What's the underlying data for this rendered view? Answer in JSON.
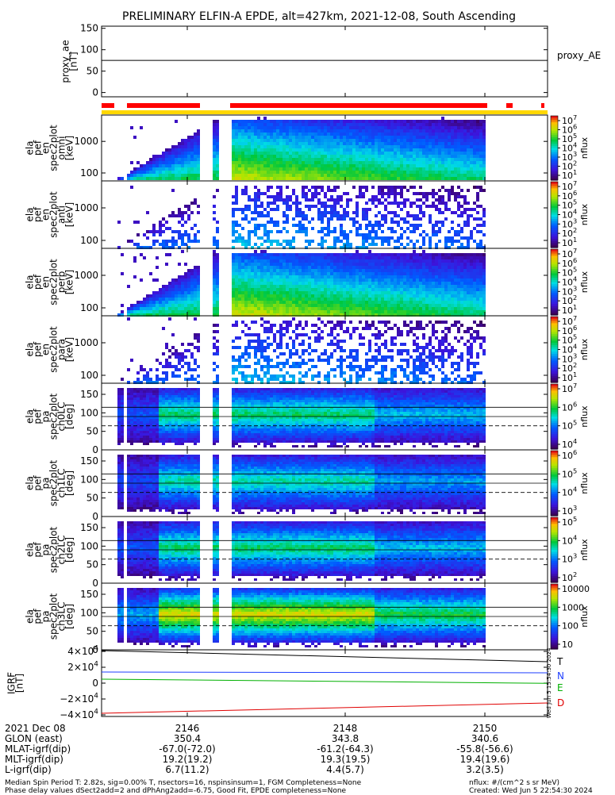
{
  "title": "PRELIMINARY ELFIN-A EPDE, alt=427km, 2021-12-08, South Ascending",
  "chart_data": [
    {
      "type": "line",
      "panel": "proxy_ae",
      "ylabel": "proxy_ae\n[nT]",
      "yticks": [
        "150",
        "100",
        "50",
        "0"
      ],
      "ylim": [
        -10,
        155
      ],
      "series": [
        {
          "name": "proxy_AE",
          "y_constant": 75
        }
      ],
      "legend": "proxy_AE"
    },
    {
      "type": "heatmap",
      "panel": "ela_pef_en_spec2plot_omni",
      "ylabel": "ela\npef\nen\nspec2plot\nomni\n[keV]",
      "yticks": [
        "1000",
        "100"
      ],
      "yscale": "log",
      "colorbar_label": "nflux",
      "colorbar_ticks": [
        "10^7",
        "10^6",
        "10^5",
        "10^4",
        "10^3",
        "10^2",
        "10^1"
      ]
    },
    {
      "type": "heatmap",
      "panel": "ela_pef_en_spec2plot_anti",
      "ylabel": "ela\npef\nen\nspec2plot\nanti\n[keV]",
      "yticks": [
        "1000",
        "100"
      ],
      "yscale": "log",
      "colorbar_label": "nflux",
      "colorbar_ticks": [
        "10^7",
        "10^6",
        "10^5",
        "10^4",
        "10^3",
        "10^2",
        "10^1"
      ]
    },
    {
      "type": "heatmap",
      "panel": "ela_pef_en_spec2plot_perp",
      "ylabel": "ela\npef\nen\nspec2plot\nperp\n[keV]",
      "yticks": [
        "1000",
        "100"
      ],
      "yscale": "log",
      "colorbar_label": "nflux",
      "colorbar_ticks": [
        "10^7",
        "10^6",
        "10^5",
        "10^4",
        "10^3",
        "10^2",
        "10^1"
      ]
    },
    {
      "type": "heatmap",
      "panel": "ela_pef_en_spec2plot_para",
      "ylabel": "ela\npef\nen\nspec2plot\npara\n[keV]",
      "yticks": [
        "1000",
        "100"
      ],
      "yscale": "log",
      "colorbar_label": "nflux",
      "colorbar_ticks": [
        "10^7",
        "10^6",
        "10^5",
        "10^4",
        "10^3",
        "10^2",
        "10^1"
      ]
    },
    {
      "type": "heatmap",
      "panel": "ela_pef_pa_spec2plot_ch0LC",
      "ylabel": "ela\npef\npa\nspec2plot\nch0LC\n[deg]",
      "yticks": [
        "150",
        "100",
        "50",
        "0"
      ],
      "ylim": [
        0,
        180
      ],
      "colorbar_label": "nflux",
      "colorbar_ticks": [
        "10^7",
        "10^6",
        "10^5",
        "10^4"
      ]
    },
    {
      "type": "heatmap",
      "panel": "ela_pef_pa_spec2plot_ch1LC",
      "ylabel": "ela\npef\npa\nspec2plot\nch1LC\n[deg]",
      "yticks": [
        "150",
        "100",
        "50",
        "0"
      ],
      "ylim": [
        0,
        180
      ],
      "colorbar_label": "nflux",
      "colorbar_ticks": [
        "10^6",
        "10^5",
        "10^4",
        "10^3"
      ]
    },
    {
      "type": "heatmap",
      "panel": "ela_pef_pa_spec2plot_ch2LC",
      "ylabel": "ela\npef\npa\nspec2plot\nch2LC\n[deg]",
      "yticks": [
        "150",
        "100",
        "50",
        "0"
      ],
      "ylim": [
        0,
        180
      ],
      "colorbar_label": "nflux",
      "colorbar_ticks": [
        "10^5",
        "10^4",
        "10^3",
        "10^2"
      ]
    },
    {
      "type": "heatmap",
      "panel": "ela_pef_pa_spec2plot_ch3LC",
      "ylabel": "ela\npef\npa\nspec2plot\nch3LC\n[deg]",
      "yticks": [
        "150",
        "100",
        "50",
        "0"
      ],
      "ylim": [
        0,
        180
      ],
      "colorbar_label": "nflux",
      "colorbar_ticks": [
        "10000",
        "1000",
        "100",
        "10"
      ]
    },
    {
      "type": "line",
      "panel": "igrf",
      "ylabel": "IGRF\n[nT]",
      "yticks": [
        "4×10^4",
        "2×10^4",
        "0",
        "−2×10^4",
        "−4×10^4"
      ],
      "ylim": [
        -42000,
        42000
      ],
      "series": [
        {
          "name": "T",
          "color": "#000000",
          "y": [
            41000,
            27000
          ]
        },
        {
          "name": "N",
          "color": "#1f3fff",
          "y": [
            14000,
            13000
          ]
        },
        {
          "name": "E",
          "color": "#00b000",
          "y": [
            5000,
            -200
          ]
        },
        {
          "name": "D",
          "color": "#e00000",
          "y": [
            -38000,
            -25000
          ]
        }
      ],
      "side_text": "Wed Jun  5 15:54:30 2024"
    }
  ],
  "xaxis": {
    "ticks": [
      "2146",
      "2148",
      "2150"
    ],
    "rows": [
      {
        "label": "2021 Dec 08",
        "values": [
          "2146",
          "2148",
          "2150"
        ]
      },
      {
        "label": "GLON (east)",
        "values": [
          "350.4",
          "343.8",
          "340.6"
        ]
      },
      {
        "label": "MLAT-igrf(dip)",
        "values": [
          "-67.0(-72.0)",
          "-61.2(-64.3)",
          "-55.8(-56.6)"
        ]
      },
      {
        "label": "MLT-igrf(dip)",
        "values": [
          "19.2(19.2)",
          "19.3(19.5)",
          "19.4(19.6)"
        ]
      },
      {
        "label": "L-igrf(dip)",
        "values": [
          "6.7(11.2)",
          "4.4(5.7)",
          "3.2(3.5)"
        ]
      }
    ]
  },
  "footer": {
    "line1": "Median Spin Period T: 2.82s, sig=0.00% T, nsectors=16, nspinsinsum=1, FGM Completeness=None",
    "line2": "Phase delay values dSect2add=2 and dPhAng2add=-6.75, Good Fit, EPDE completeness=None",
    "units": "nflux: #/(cm^2 s sr MeV)",
    "created": "Created: Wed Jun  5 22:54:30 2024"
  },
  "colors": {
    "bar_red": "#ff0000",
    "bar_yellow": "#ffd700"
  }
}
